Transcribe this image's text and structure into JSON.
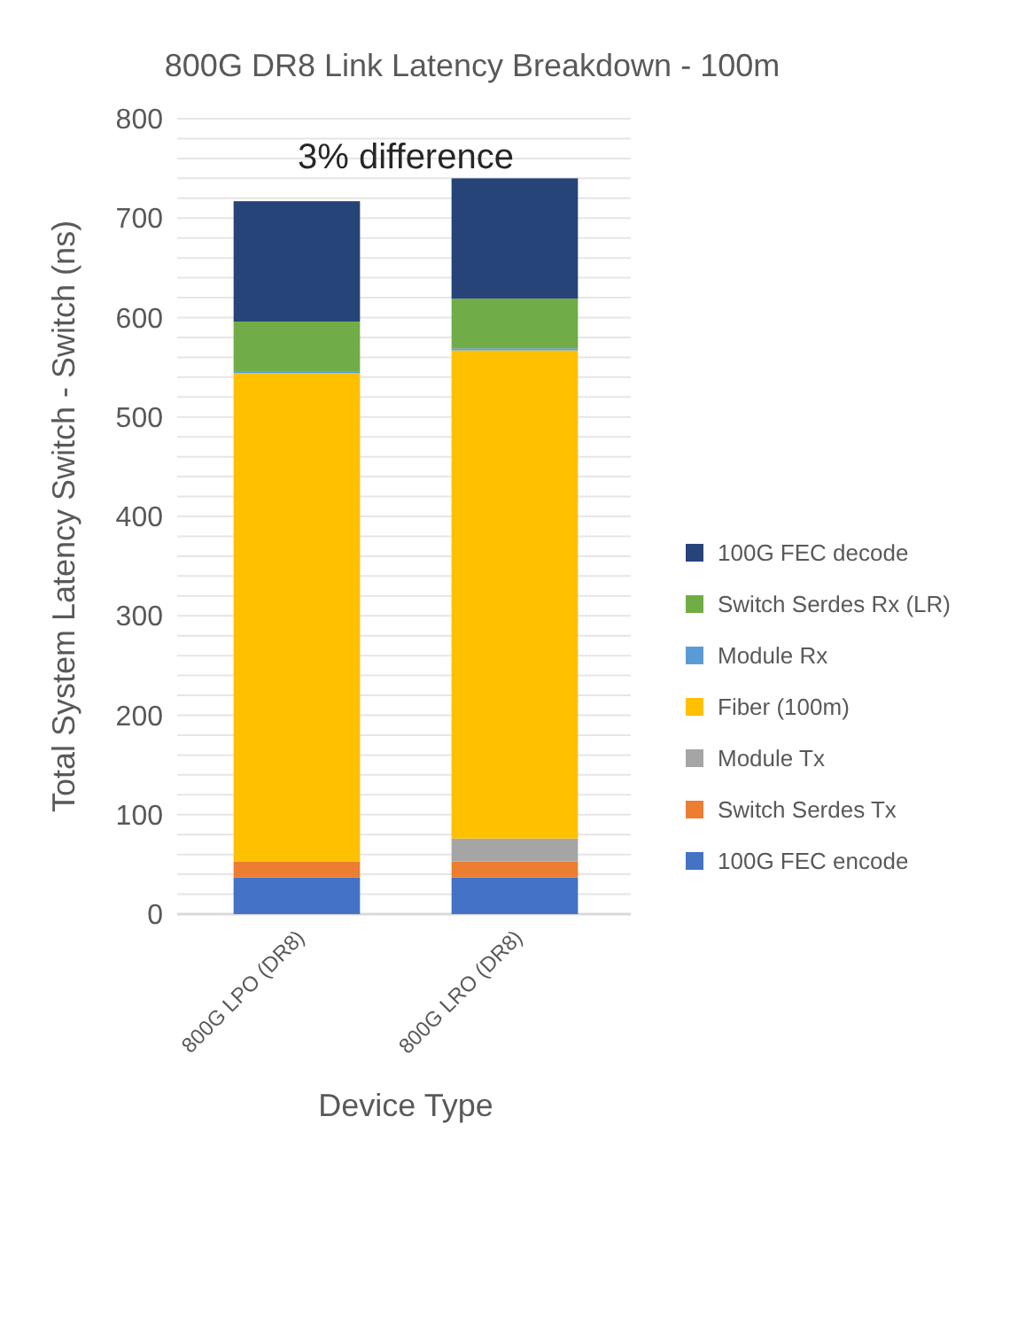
{
  "chart_data": {
    "type": "bar",
    "title": "800G DR8 Link Latency Breakdown - 100m",
    "xlabel": "Device Type",
    "ylabel": "Total System Latency Switch - Switch (ns)",
    "categories": [
      "800G LPO (DR8)",
      "800G LRO (DR8)"
    ],
    "stacked": true,
    "series": [
      {
        "name": "100G FEC encode",
        "color": "#4472c4",
        "values": [
          37,
          37
        ]
      },
      {
        "name": "Switch Serdes Tx",
        "color": "#ed7d31",
        "values": [
          16,
          16
        ]
      },
      {
        "name": "Module Tx",
        "color": "#a5a5a5",
        "values": [
          0,
          23
        ]
      },
      {
        "name": "Fiber (100m)",
        "color": "#ffc000",
        "values": [
          491,
          491
        ]
      },
      {
        "name": "Module Rx",
        "color": "#5b9bd5",
        "values": [
          2,
          2
        ]
      },
      {
        "name": "Switch Serdes Rx (LR)",
        "color": "#70ad47",
        "values": [
          50,
          50
        ]
      },
      {
        "name": "100G FEC decode",
        "color": "#264478",
        "values": [
          121,
          121
        ]
      }
    ],
    "ylim": [
      0,
      800
    ],
    "yticks": [
      0,
      {
        "value": 20,
        "label": null
      },
      {
        "value": 40,
        "label": null
      },
      {
        "value": 60,
        "label": null
      },
      {
        "value": 80,
        "label": null
      },
      100,
      {
        "value": 120,
        "label": null
      },
      {
        "value": 140,
        "label": null
      },
      {
        "value": 160,
        "label": null
      },
      {
        "value": 180,
        "label": null
      },
      200,
      {
        "value": 220,
        "label": null
      },
      {
        "value": 240,
        "label": null
      },
      {
        "value": 260,
        "label": null
      },
      {
        "value": 280,
        "label": null
      },
      300,
      {
        "value": 320,
        "label": null
      },
      {
        "value": 340,
        "label": null
      },
      {
        "value": 360,
        "label": null
      },
      {
        "value": 380,
        "label": null
      },
      400,
      {
        "value": 420,
        "label": null
      },
      {
        "value": 440,
        "label": null
      },
      {
        "value": 460,
        "label": null
      },
      {
        "value": 480,
        "label": null
      },
      500,
      {
        "value": 520,
        "label": null
      },
      {
        "value": 540,
        "label": null
      },
      {
        "value": 560,
        "label": null
      },
      {
        "value": 580,
        "label": null
      },
      600,
      {
        "value": 620,
        "label": null
      },
      {
        "value": 640,
        "label": null
      },
      {
        "value": 660,
        "label": null
      },
      {
        "value": 680,
        "label": null
      },
      700,
      {
        "value": 720,
        "label": null
      },
      {
        "value": 740,
        "label": null
      },
      {
        "value": 760,
        "label": null
      },
      {
        "value": 780,
        "label": null
      },
      800
    ],
    "grid": "y",
    "legend": "right",
    "annotations": [
      "3% difference"
    ]
  }
}
